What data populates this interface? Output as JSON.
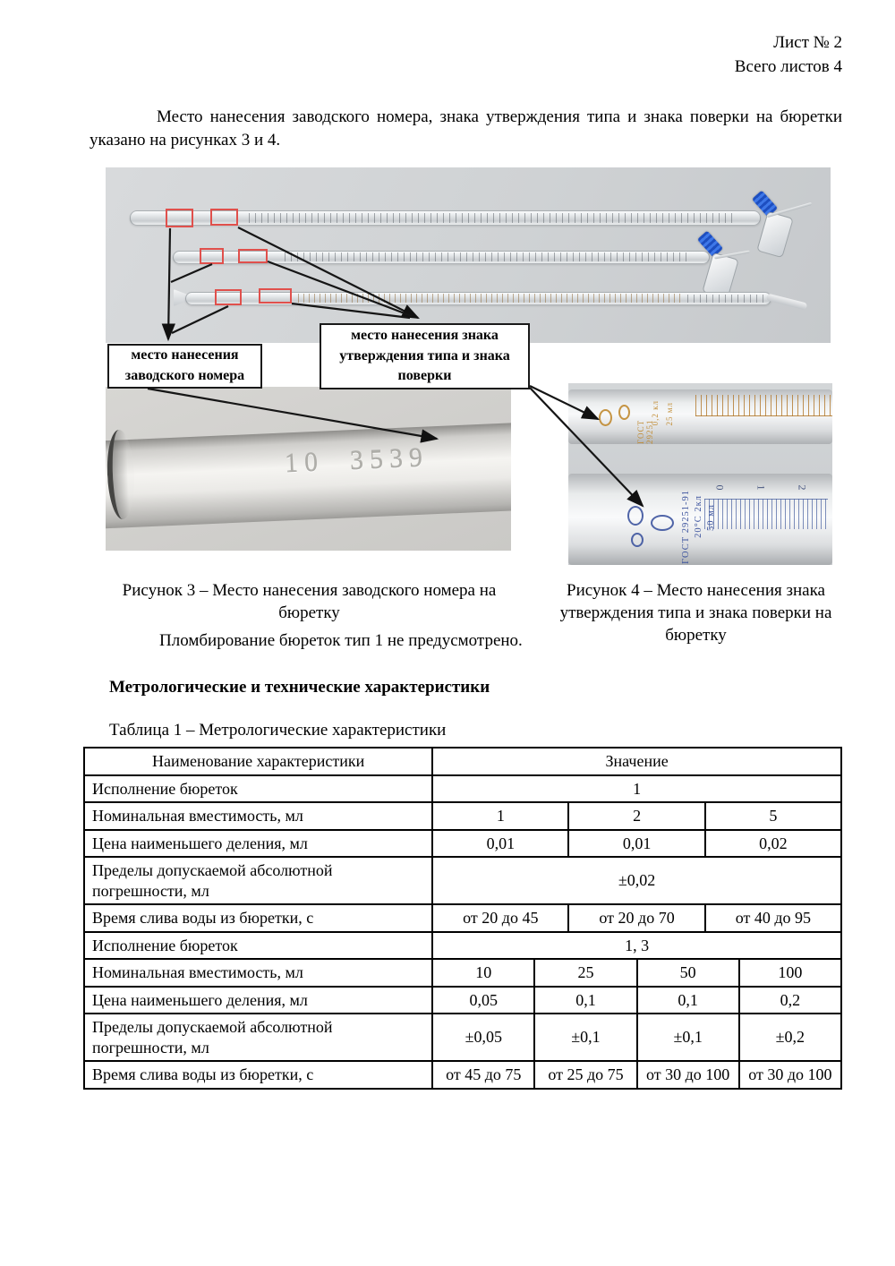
{
  "header": {
    "sheet": "Лист № 2",
    "total": "Всего листов 4"
  },
  "intro": "Место нанесения заводского номера, знака утверждения типа и знака поверки на бюретки указано на рисунках 3 и 4.",
  "figure": {
    "callout_serial": "место нанесения заводского номера",
    "callout_mark": "место нанесения знака утверждения типа и знака поверки",
    "fig3_caption": "Рисунок 3 – Место нанесения заводского номера на бюретку",
    "fig4_caption": "Рисунок 4 – Место нанесения знака утверждения типа и знака поверки на бюретку",
    "engraving": "10  3539",
    "orange_marks": [
      "ГОСТ 29251",
      "0,2 кл",
      "25 мл"
    ],
    "blue_marks": [
      "ГОСТ 29251-91",
      "20°С 2кл",
      "50 мл"
    ],
    "scale_labels": [
      "0",
      "1",
      "2"
    ]
  },
  "sealing": "Пломбирование бюреток тип 1 не предусмотрено.",
  "section_heading": "Метрологические и технические характеристики",
  "table": {
    "caption": "Таблица 1 – Метрологические характеристики",
    "header": {
      "name": "Наименование характеристики",
      "value": "Значение"
    },
    "rows": [
      {
        "label": "Исполнение бюреток",
        "values": [
          "1"
        ]
      },
      {
        "label": "Номинальная вместимость, мл",
        "values": [
          "1",
          "2",
          "5"
        ]
      },
      {
        "label": "Цена наименьшего деления, мл",
        "values": [
          "0,01",
          "0,01",
          "0,02"
        ]
      },
      {
        "label": "Пределы допускаемой абсолютной погрешности, мл",
        "values": [
          "±0,02"
        ]
      },
      {
        "label": "Время слива воды из бюретки, с",
        "values": [
          "от 20 до 45",
          "от 20 до 70",
          "от 40 до 95"
        ]
      },
      {
        "label": "Исполнение бюреток",
        "values": [
          "1, 3"
        ]
      },
      {
        "label": "Номинальная вместимость, мл",
        "values": [
          "10",
          "25",
          "50",
          "100"
        ]
      },
      {
        "label": "Цена наименьшего деления, мл",
        "values": [
          "0,05",
          "0,1",
          "0,1",
          "0,2"
        ]
      },
      {
        "label": "Пределы допускаемой абсолютной погрешности, мл",
        "values": [
          "±0,05",
          "±0,1",
          "±0,1",
          "±0,2"
        ]
      },
      {
        "label": "Время слива воды из бюретки, с",
        "values": [
          "от 45 до 75",
          "от 25 до 75",
          "от 30 до 100",
          "от 30 до 100"
        ]
      }
    ]
  }
}
